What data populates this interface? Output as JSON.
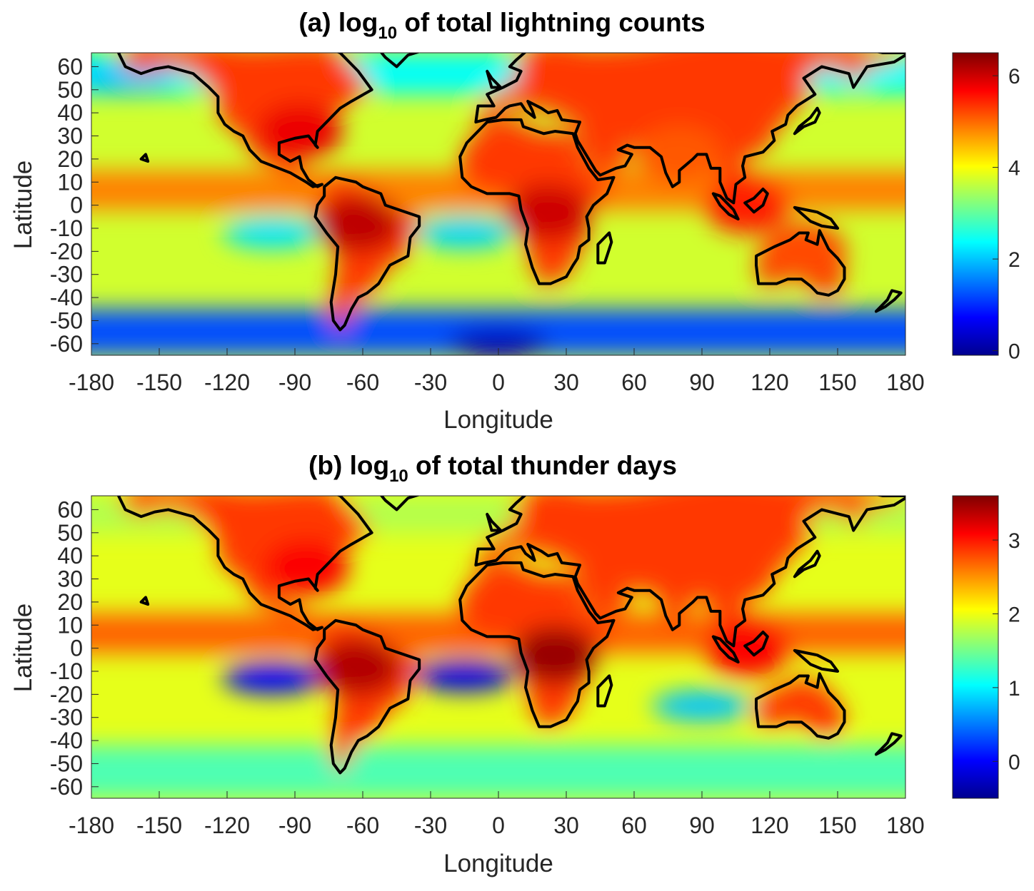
{
  "colormap": {
    "name": "jet",
    "stops": [
      "#00008f",
      "#0000ff",
      "#0080ff",
      "#00ffff",
      "#80ff80",
      "#ffff00",
      "#ff8000",
      "#ff0000",
      "#800000"
    ]
  },
  "outline_color": "#000000",
  "chart_data": [
    {
      "type": "heatmap",
      "title_prefix": "(a) log",
      "title_subscript": "10",
      "title_suffix": " of total lightning counts",
      "xlabel": "Longitude",
      "ylabel": "Latitude",
      "xlim": [
        -180,
        180
      ],
      "ylim": [
        -65,
        66
      ],
      "xticks": [
        -180,
        -150,
        -120,
        -90,
        -60,
        -30,
        0,
        30,
        60,
        90,
        120,
        150,
        180
      ],
      "yticks": [
        60,
        50,
        40,
        30,
        20,
        10,
        0,
        -10,
        -20,
        -30,
        -40,
        -50,
        -60
      ],
      "xtick_labels": [
        "-180",
        "-150",
        "-120",
        "-90",
        "-60",
        "-30",
        "0",
        "30",
        "60",
        "90",
        "120",
        "150",
        "180"
      ],
      "ytick_labels": [
        "60",
        "50",
        "40",
        "30",
        "20",
        "10",
        "0",
        "-10",
        "-20",
        "-30",
        "-40",
        "-50",
        "-60"
      ],
      "colorbar": {
        "range": [
          -0.1,
          6.5
        ],
        "ticks": [
          0,
          2,
          4,
          6
        ],
        "tick_labels": [
          "0",
          "2",
          "4",
          "6"
        ]
      },
      "hotspots": [
        {
          "lon": -62,
          "lat": -8,
          "value": 6.1
        },
        {
          "lon": 22,
          "lat": -3,
          "value": 6.0
        },
        {
          "lon": -88,
          "lat": 32,
          "value": 5.8
        },
        {
          "lon": 110,
          "lat": 0,
          "value": 5.5
        },
        {
          "lon": 135,
          "lat": -20,
          "value": 5.2
        },
        {
          "lon": 80,
          "lat": 22,
          "value": 5.1
        }
      ],
      "minima": [
        {
          "lon": 0,
          "lat": -60,
          "value": 0.2
        },
        {
          "lon": -100,
          "lat": -12,
          "value": 2.2
        },
        {
          "lon": -15,
          "lat": -12,
          "value": 2.1
        },
        {
          "lon": -165,
          "lat": 55,
          "value": 2.0
        }
      ]
    },
    {
      "type": "heatmap",
      "title_prefix": "(b) log",
      "title_subscript": "10",
      "title_suffix": " of total thunder days",
      "xlabel": "Longitude",
      "ylabel": "Latitude",
      "xlim": [
        -180,
        180
      ],
      "ylim": [
        -65,
        66
      ],
      "xticks": [
        -180,
        -150,
        -120,
        -90,
        -60,
        -30,
        0,
        30,
        60,
        90,
        120,
        150,
        180
      ],
      "yticks": [
        60,
        50,
        40,
        30,
        20,
        10,
        0,
        -10,
        -20,
        -30,
        -40,
        -50,
        -60
      ],
      "xtick_labels": [
        "-180",
        "-150",
        "-120",
        "-90",
        "-60",
        "-30",
        "0",
        "30",
        "60",
        "90",
        "120",
        "150",
        "180"
      ],
      "ytick_labels": [
        "60",
        "50",
        "40",
        "30",
        "20",
        "10",
        "0",
        "-10",
        "-20",
        "-30",
        "-40",
        "-50",
        "-60"
      ],
      "colorbar": {
        "range": [
          -0.5,
          3.6
        ],
        "ticks": [
          0,
          1,
          2,
          3
        ],
        "tick_labels": [
          "0",
          "1",
          "2",
          "3"
        ]
      },
      "hotspots": [
        {
          "lon": -62,
          "lat": -8,
          "value": 3.4
        },
        {
          "lon": 25,
          "lat": -3,
          "value": 3.5
        },
        {
          "lon": -85,
          "lat": 35,
          "value": 3.1
        },
        {
          "lon": 110,
          "lat": 0,
          "value": 3.1
        }
      ],
      "minima": [
        {
          "lon": -100,
          "lat": -13,
          "value": 0.0
        },
        {
          "lon": -15,
          "lat": -12,
          "value": -0.1
        },
        {
          "lon": 90,
          "lat": -25,
          "value": 0.8
        }
      ]
    }
  ]
}
